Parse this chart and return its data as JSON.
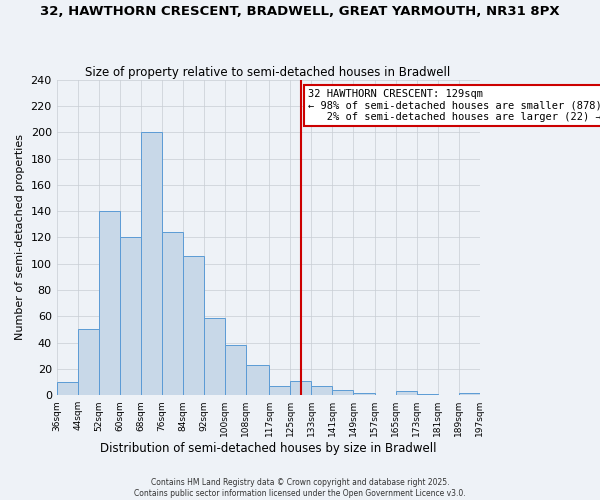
{
  "title": "32, HAWTHORN CRESCENT, BRADWELL, GREAT YARMOUTH, NR31 8PX",
  "subtitle": "Size of property relative to semi-detached houses in Bradwell",
  "xlabel": "Distribution of semi-detached houses by size in Bradwell",
  "ylabel": "Number of semi-detached properties",
  "bin_edges": [
    36,
    44,
    52,
    60,
    68,
    76,
    84,
    92,
    100,
    108,
    117,
    125,
    133,
    141,
    149,
    157,
    165,
    173,
    181,
    189,
    197
  ],
  "counts": [
    10,
    50,
    140,
    120,
    200,
    124,
    106,
    59,
    38,
    23,
    7,
    11,
    7,
    4,
    2,
    0,
    3,
    1,
    0,
    2
  ],
  "bar_color": "#c8d8e8",
  "bar_edge_color": "#5b9bd5",
  "vline_x": 129,
  "vline_color": "#cc0000",
  "annotation_line1": "32 HAWTHORN CRESCENT: 129sqm",
  "annotation_line2": "← 98% of semi-detached houses are smaller (878)",
  "annotation_line3": "   2% of semi-detached houses are larger (22) →",
  "annotation_box_color": "#ffffff",
  "annotation_box_edge": "#cc0000",
  "ylim": [
    0,
    240
  ],
  "yticks": [
    0,
    20,
    40,
    60,
    80,
    100,
    120,
    140,
    160,
    180,
    200,
    220,
    240
  ],
  "tick_labels": [
    "36sqm",
    "44sqm",
    "52sqm",
    "60sqm",
    "68sqm",
    "76sqm",
    "84sqm",
    "92sqm",
    "100sqm",
    "108sqm",
    "117sqm",
    "125sqm",
    "133sqm",
    "141sqm",
    "149sqm",
    "157sqm",
    "165sqm",
    "173sqm",
    "181sqm",
    "189sqm",
    "197sqm"
  ],
  "footer1": "Contains HM Land Registry data © Crown copyright and database right 2025.",
  "footer2": "Contains public sector information licensed under the Open Government Licence v3.0.",
  "bg_color": "#eef2f7",
  "grid_color": "#c8cdd4"
}
